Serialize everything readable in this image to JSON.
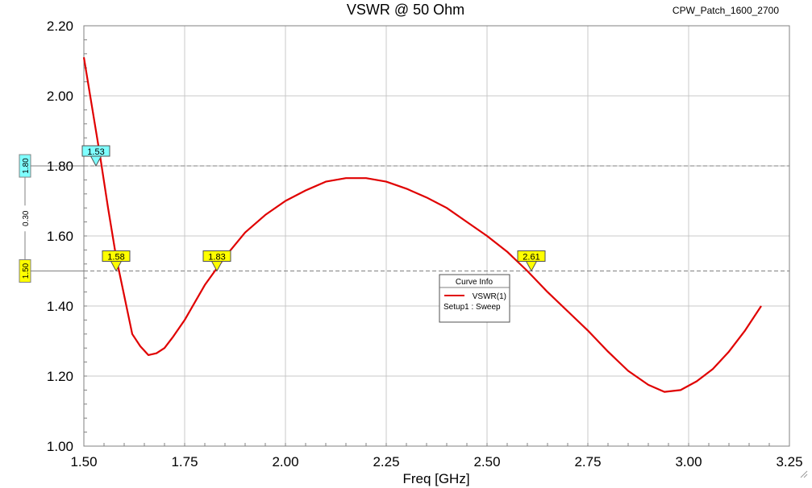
{
  "title": "VSWR @ 50 Ohm",
  "project_name": "CPW_Patch_1600_2700",
  "chart_data": {
    "type": "line",
    "xlabel": "Freq [GHz]",
    "ylabel": "",
    "xlim": [
      1.5,
      3.25
    ],
    "ylim": [
      1.0,
      2.2
    ],
    "x_ticks": [
      "1.50",
      "1.75",
      "2.00",
      "2.25",
      "2.50",
      "2.75",
      "3.00",
      "3.25"
    ],
    "y_ticks": [
      "1.00",
      "1.20",
      "1.40",
      "1.60",
      "1.80",
      "2.00",
      "2.20"
    ],
    "grid": true,
    "series": [
      {
        "name": "VSWR(1)",
        "color": "#e00000",
        "x": [
          1.5,
          1.52,
          1.54,
          1.56,
          1.58,
          1.6,
          1.62,
          1.64,
          1.66,
          1.68,
          1.7,
          1.72,
          1.75,
          1.8,
          1.85,
          1.9,
          1.95,
          2.0,
          2.05,
          2.1,
          2.15,
          2.2,
          2.25,
          2.3,
          2.35,
          2.4,
          2.45,
          2.5,
          2.55,
          2.6,
          2.65,
          2.7,
          2.75,
          2.8,
          2.85,
          2.9,
          2.94,
          2.98,
          3.02,
          3.06,
          3.1,
          3.14,
          3.18
        ],
        "y": [
          2.11,
          1.97,
          1.83,
          1.68,
          1.54,
          1.43,
          1.32,
          1.285,
          1.26,
          1.265,
          1.28,
          1.31,
          1.36,
          1.46,
          1.54,
          1.61,
          1.66,
          1.7,
          1.73,
          1.755,
          1.765,
          1.765,
          1.755,
          1.735,
          1.71,
          1.68,
          1.64,
          1.6,
          1.555,
          1.5,
          1.44,
          1.385,
          1.33,
          1.27,
          1.215,
          1.175,
          1.155,
          1.16,
          1.185,
          1.22,
          1.27,
          1.33,
          1.4
        ]
      }
    ],
    "reference_lines": [
      {
        "y": 1.8,
        "label": "1.80",
        "color": "#7fffff"
      },
      {
        "y": 1.5,
        "label": "1.50",
        "color": "#ffff00"
      }
    ],
    "reference_delta": "0.30",
    "markers": [
      {
        "x": 1.53,
        "y": 1.8,
        "label": "1.53",
        "color": "#7fffff"
      },
      {
        "x": 1.58,
        "y": 1.5,
        "label": "1.58",
        "color": "#ffff00"
      },
      {
        "x": 1.83,
        "y": 1.5,
        "label": "1.83",
        "color": "#ffff00"
      },
      {
        "x": 2.61,
        "y": 1.5,
        "label": "2.61",
        "color": "#ffff00"
      }
    ],
    "legend": {
      "title": "Curve Info",
      "entry": "VSWR(1)",
      "subentry": "Setup1 : Sweep",
      "placement": "center-right"
    }
  }
}
